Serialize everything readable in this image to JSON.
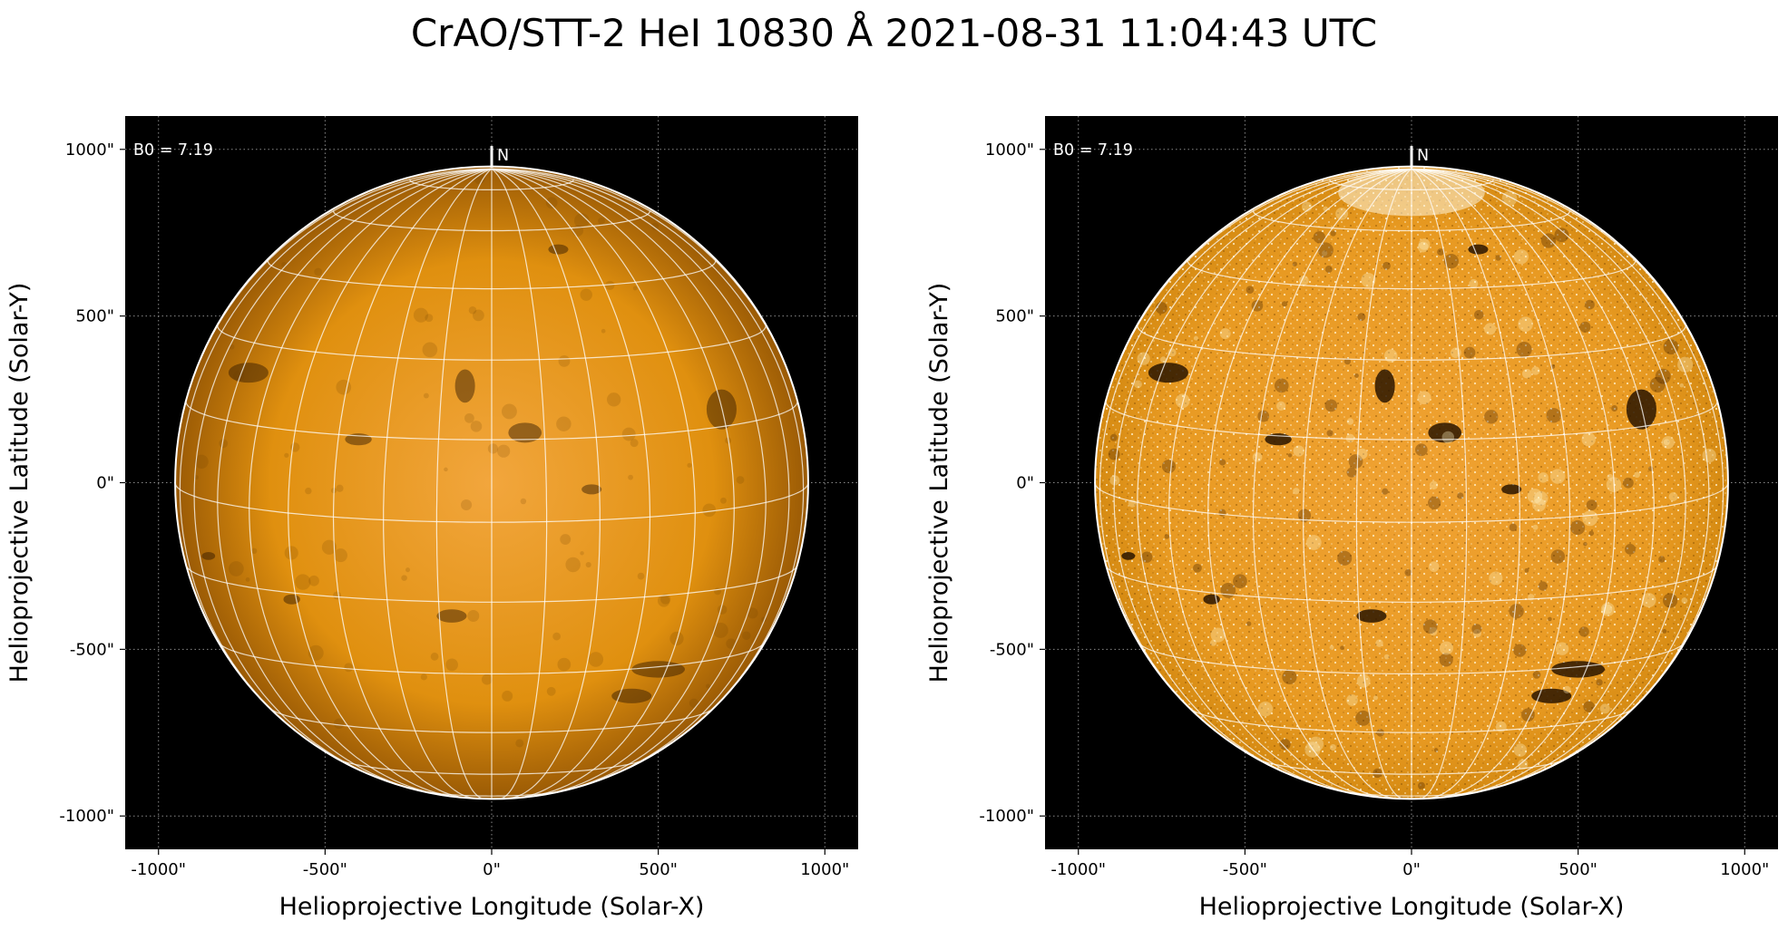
{
  "title": "CrAO/STT-2 HeI 10830 Å 2021-08-31 11:04:43 UTC",
  "colors": {
    "background": "#000000",
    "disk_center": "#f0a238",
    "disk_edge": "#b86f08",
    "grid": "#ffffff",
    "limb": "#ffffff"
  },
  "panels": [
    {
      "id": "left",
      "variant": "smooth",
      "b0_label": "B0 = 7.19",
      "north_label": "N",
      "xlabel": "Helioprojective Longitude (Solar-X)",
      "ylabel": "Helioprojective Latitude (Solar-Y)",
      "xticks": [
        "-1000\"",
        "-500\"",
        "0\"",
        "500\"",
        "1000\""
      ],
      "yticks": [
        "1000\"",
        "500\"",
        "0\"",
        "-500\"",
        "-1000\""
      ]
    },
    {
      "id": "right",
      "variant": "enhanced",
      "b0_label": "B0 = 7.19",
      "north_label": "N",
      "xlabel": "Helioprojective Longitude (Solar-X)",
      "ylabel": "Helioprojective Latitude (Solar-Y)",
      "xticks": [
        "-1000\"",
        "-500\"",
        "0\"",
        "500\"",
        "1000\""
      ],
      "yticks": [
        "1000\"",
        "500\"",
        "0\"",
        "-500\"",
        "-1000\""
      ]
    }
  ],
  "axis": {
    "x_tick_values": [
      -1000,
      -500,
      0,
      500,
      1000
    ],
    "y_tick_values": [
      1000,
      500,
      0,
      -500,
      -1000
    ],
    "range": [
      -1100,
      1100
    ],
    "units": "arcsec"
  },
  "sun": {
    "radius_arcsec": 950,
    "b0_deg": 7.19,
    "latitude_grid_step_deg": 15,
    "longitude_grid_step_deg": 10
  }
}
